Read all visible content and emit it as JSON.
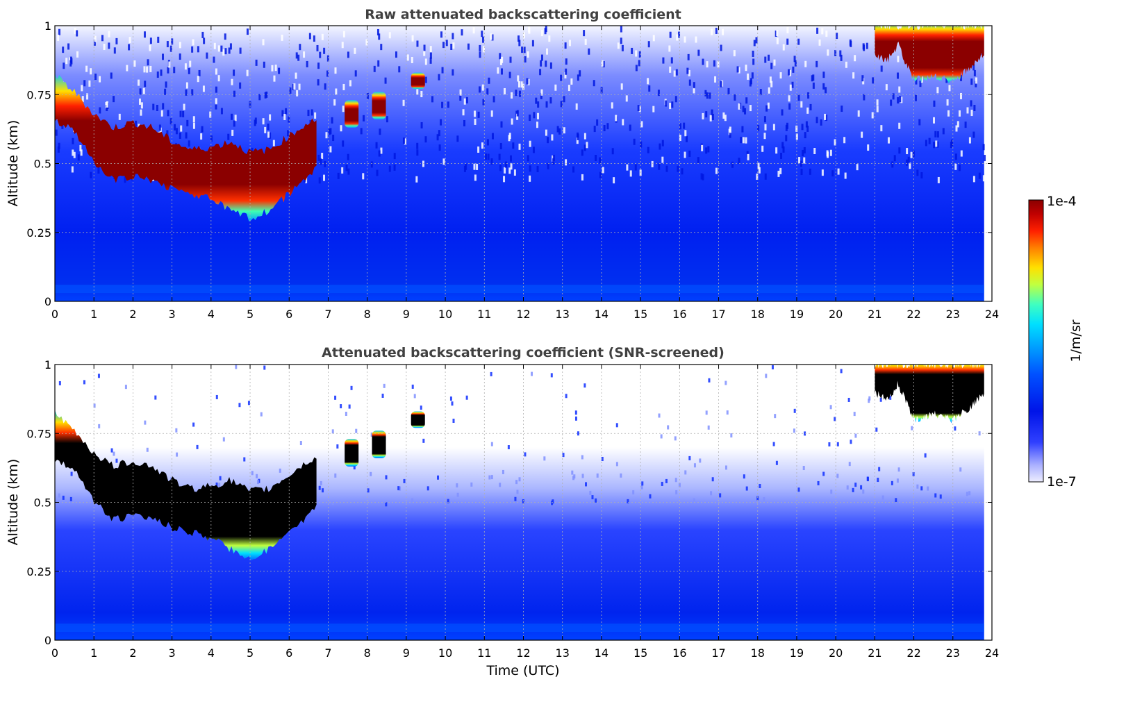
{
  "chart_data": [
    {
      "type": "heatmap",
      "title": "Raw attenuated backscattering coefficient",
      "xlabel": "",
      "ylabel": "Altitude (km)",
      "xlim": [
        0,
        24
      ],
      "ylim": [
        0,
        1
      ],
      "xticks": [
        "0",
        "1",
        "2",
        "3",
        "4",
        "5",
        "6",
        "7",
        "8",
        "9",
        "10",
        "11",
        "12",
        "13",
        "14",
        "15",
        "16",
        "17",
        "18",
        "19",
        "20",
        "21",
        "22",
        "23",
        "24"
      ],
      "yticks": [
        "0",
        "0.25",
        "0.5",
        "0.75",
        "1"
      ],
      "ytick_values": [
        0,
        0.25,
        0.5,
        0.75,
        1
      ],
      "grid": true,
      "data_end_time": 23.8,
      "cloud_layers": [
        {
          "name": "low cloud",
          "time": [
            0,
            0.5,
            1,
            1.5,
            2,
            2.5,
            3,
            3.5,
            4,
            4.5,
            5,
            5.5,
            6,
            6.5,
            6.7
          ],
          "base_km": [
            0.66,
            0.62,
            0.5,
            0.44,
            0.45,
            0.44,
            0.41,
            0.39,
            0.37,
            0.33,
            0.3,
            0.33,
            0.39,
            0.45,
            0.49
          ],
          "top_km": [
            0.82,
            0.76,
            0.68,
            0.63,
            0.65,
            0.63,
            0.58,
            0.55,
            0.56,
            0.58,
            0.54,
            0.55,
            0.6,
            0.65,
            0.66
          ]
        },
        {
          "name": "patches",
          "time": [
            7.6,
            8.3,
            9.3
          ],
          "base_km": [
            0.63,
            0.66,
            0.77
          ],
          "top_km": [
            0.73,
            0.76,
            0.83
          ]
        },
        {
          "name": "upper cloud",
          "time": [
            21,
            21.3,
            21.6,
            22,
            22.5,
            23,
            23.5,
            23.8
          ],
          "base_km": [
            0.9,
            0.87,
            0.93,
            0.8,
            0.82,
            0.8,
            0.85,
            0.9
          ],
          "top_km": [
            1,
            1,
            1,
            1,
            1,
            1,
            1,
            1
          ]
        }
      ]
    },
    {
      "type": "heatmap",
      "title": "Attenuated backscattering coefficient (SNR-screened)",
      "xlabel": "Time (UTC)",
      "ylabel": "Altitude (km)",
      "xlim": [
        0,
        24
      ],
      "ylim": [
        0,
        1
      ],
      "xticks": [
        "0",
        "1",
        "2",
        "3",
        "4",
        "5",
        "6",
        "7",
        "8",
        "9",
        "10",
        "11",
        "12",
        "13",
        "14",
        "15",
        "16",
        "17",
        "18",
        "19",
        "20",
        "21",
        "22",
        "23",
        "24"
      ],
      "yticks": [
        "0",
        "0.25",
        "0.5",
        "0.75",
        "1"
      ],
      "ytick_values": [
        0,
        0.25,
        0.5,
        0.75,
        1
      ],
      "grid": true,
      "data_end_time": 23.8,
      "screened_signal_top_km": 0.55
    }
  ],
  "colorbar": {
    "label": "1/m/sr",
    "max_label": "1e-4",
    "min_label": "1e-7",
    "min_value": 1e-07,
    "max_value": 0.0001,
    "colors": [
      "#eeeeff",
      "#aab0ff",
      "#3040ff",
      "#0014e8",
      "#0050ff",
      "#00a0ff",
      "#00e0ff",
      "#40ffc0",
      "#c0ff40",
      "#ffe000",
      "#ff8000",
      "#ff2000",
      "#c00000",
      "#8b0000"
    ]
  }
}
